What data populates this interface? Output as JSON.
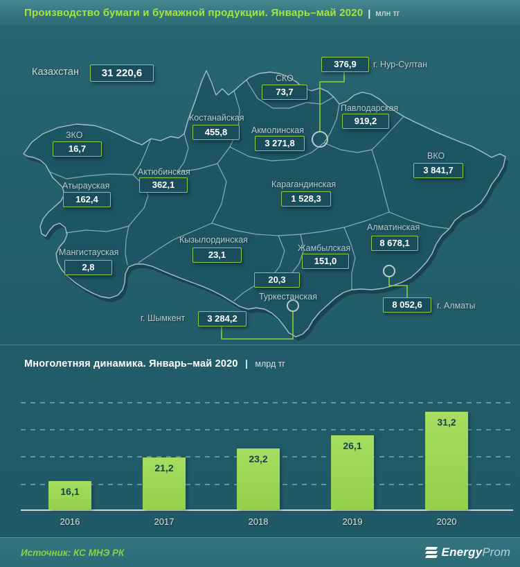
{
  "header": {
    "title": "Производство бумаги и бумажной продукции. Январь–май 2020",
    "separator": "|",
    "unit": "млн тг"
  },
  "map": {
    "country_label": "Казахстан",
    "country_value": "31 220,6",
    "regions": [
      {
        "id": "nur-sultan",
        "label": "г. Нур-Султан",
        "value": "376,9"
      },
      {
        "id": "sko",
        "label": "СКО",
        "value": "73,7"
      },
      {
        "id": "pavlodar",
        "label": "Павлодарская",
        "value": "919,2"
      },
      {
        "id": "kostanay",
        "label": "Костанайская",
        "value": "455,8"
      },
      {
        "id": "akmola",
        "label": "Акмолинская",
        "value": "3 271,8"
      },
      {
        "id": "zko",
        "label": "ЗКО",
        "value": "16,7"
      },
      {
        "id": "vko",
        "label": "ВКО",
        "value": "3 841,7"
      },
      {
        "id": "aktobe",
        "label": "Актюбинская",
        "value": "362,1"
      },
      {
        "id": "atyrau",
        "label": "Атырауская",
        "value": "162,4"
      },
      {
        "id": "karaganda",
        "label": "Карагандинская",
        "value": "1 528,3"
      },
      {
        "id": "almaty-region",
        "label": "Алматинская",
        "value": "8 678,1"
      },
      {
        "id": "mangystau",
        "label": "Мангистауская",
        "value": "2,8"
      },
      {
        "id": "kyzylorda",
        "label": "Кызылординская",
        "value": "23,1"
      },
      {
        "id": "zhambyl",
        "label": "Жамбылская",
        "value": "151,0"
      },
      {
        "id": "turkestan",
        "label": "Туркестанская",
        "value": "20,3"
      },
      {
        "id": "almaty-city",
        "label": "г. Алматы",
        "value": "8 052,6"
      },
      {
        "id": "shymkent",
        "label": "г. Шымкент",
        "value": "3 284,2"
      }
    ]
  },
  "chart": {
    "title": "Многолетняя динамика. Январь–май 2020",
    "separator": "|",
    "unit": "млрд тг"
  },
  "chart_data": {
    "type": "bar",
    "categories": [
      "2016",
      "2017",
      "2018",
      "2019",
      "2020"
    ],
    "values": [
      16.1,
      21.2,
      23.2,
      26.1,
      31.2
    ],
    "value_labels": [
      "16,1",
      "21,2",
      "23,2",
      "26,1",
      "31,2"
    ],
    "title": "Многолетняя динамика. Январь–май 2020 | млрд тг",
    "xlabel": "",
    "ylabel": "",
    "unit": "млрд тг",
    "legend": false,
    "grid": "horizontal-dashed",
    "bar_color": "#9ad455",
    "value_label_color": "#17424e"
  },
  "footer": {
    "source": "Источник: КС МНЭ РК",
    "logo_bold": "Energy",
    "logo_light": "Prom"
  },
  "colors": {
    "background": "#235e6b",
    "accent_green": "#8ecf3f",
    "title_green": "#a7e43d",
    "box_fill": "#1a4d5b",
    "land_fill": "#1d5563",
    "map_border": "#a9c2c8"
  }
}
